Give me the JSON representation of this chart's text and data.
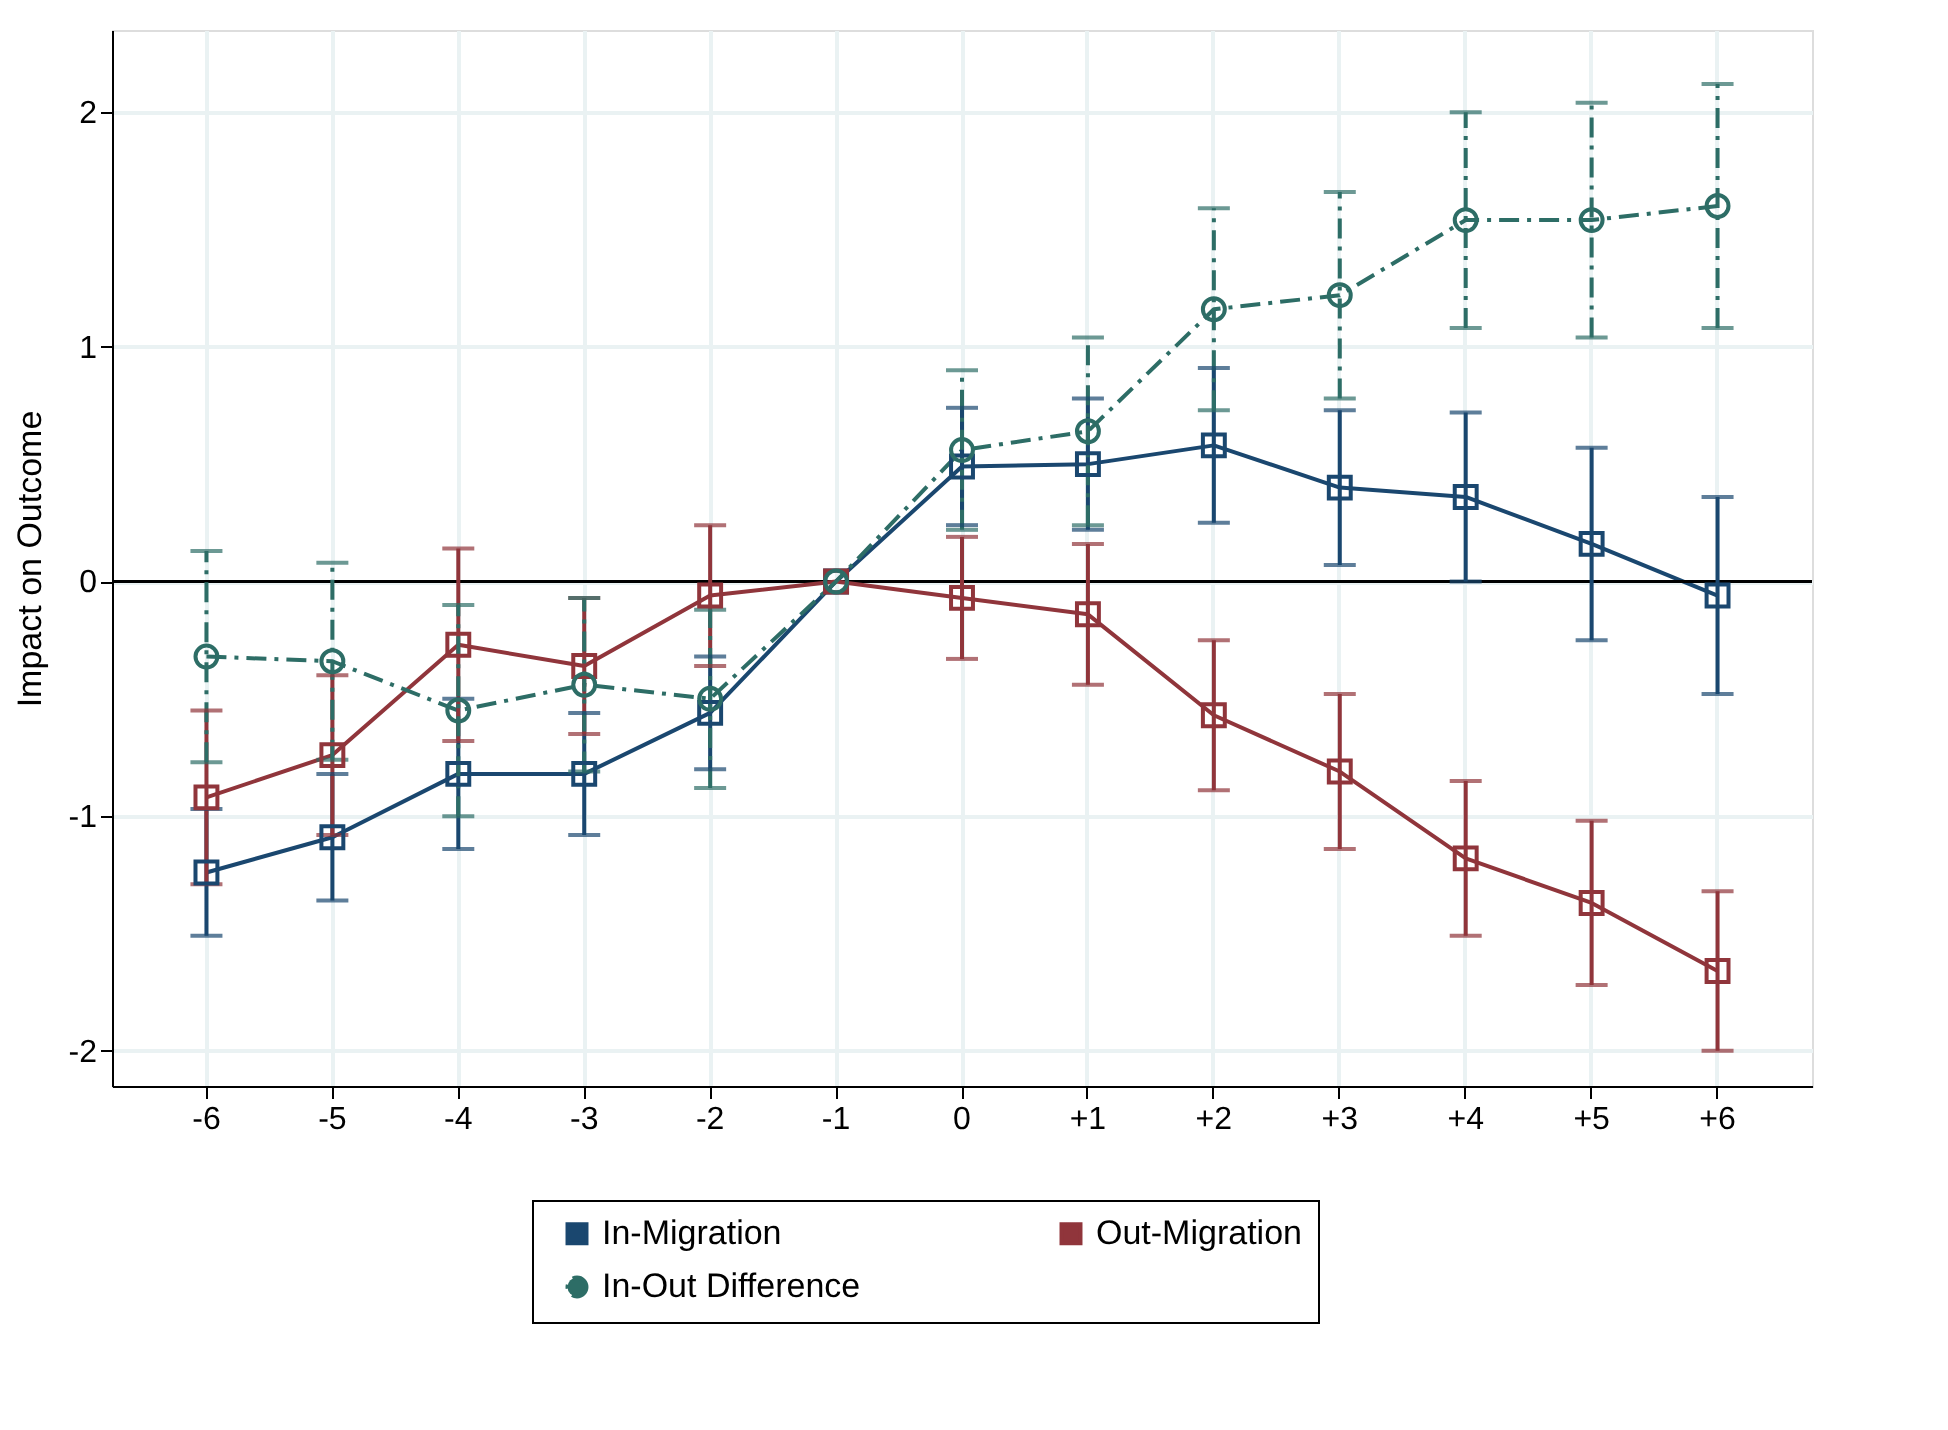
{
  "chart_data": {
    "type": "line",
    "ylabel": "Impact on Outcome",
    "categories": [
      "-6",
      "-5",
      "-4",
      "-3",
      "-2",
      "-1",
      "0",
      "+1",
      "+2",
      "+3",
      "+4",
      "+5",
      "+6"
    ],
    "series": [
      {
        "name": "In-Migration",
        "color": "#1a476f",
        "marker": "square",
        "line_style": "solid",
        "values": [
          -1.24,
          -1.09,
          -0.82,
          -0.82,
          -0.56,
          0,
          0.49,
          0.5,
          0.58,
          0.4,
          0.36,
          0.16,
          -0.06
        ],
        "errors": [
          0.27,
          0.27,
          0.32,
          0.26,
          0.24,
          null,
          0.25,
          0.28,
          0.33,
          0.33,
          0.36,
          0.41,
          0.42
        ]
      },
      {
        "name": "Out-Migration",
        "color": "#90353b",
        "marker": "square",
        "line_style": "solid",
        "values": [
          -0.92,
          -0.74,
          -0.27,
          -0.36,
          -0.06,
          0,
          -0.07,
          -0.14,
          -0.57,
          -0.81,
          -1.18,
          -1.37,
          -1.66
        ],
        "errors": [
          0.37,
          0.34,
          0.41,
          0.29,
          0.3,
          null,
          0.26,
          0.3,
          0.32,
          0.33,
          0.33,
          0.35,
          0.34
        ]
      },
      {
        "name": "In-Out Difference",
        "color": "#2d6d66",
        "marker": "circle",
        "line_style": "dashed",
        "values": [
          -0.32,
          -0.34,
          -0.55,
          -0.44,
          -0.5,
          0,
          0.56,
          0.64,
          1.16,
          1.22,
          1.54,
          1.54,
          1.6
        ],
        "errors": [
          0.45,
          0.42,
          0.45,
          0.37,
          0.38,
          null,
          0.34,
          0.4,
          0.43,
          0.44,
          0.46,
          0.5,
          0.52
        ]
      }
    ],
    "ylim": [
      -2.15,
      2.35
    ],
    "yticks": [
      -2,
      -1,
      0,
      1,
      2
    ],
    "ref_lines": [
      {
        "axis": "y",
        "value": 0,
        "color": "#000000"
      }
    ],
    "grid": true,
    "legend": "bottom"
  }
}
